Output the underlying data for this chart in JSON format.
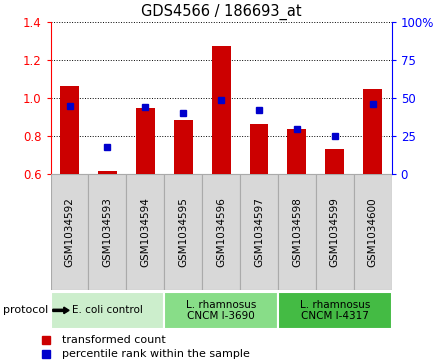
{
  "title": "GDS4566 / 186693_at",
  "samples": [
    "GSM1034592",
    "GSM1034593",
    "GSM1034594",
    "GSM1034595",
    "GSM1034596",
    "GSM1034597",
    "GSM1034598",
    "GSM1034599",
    "GSM1034600"
  ],
  "transformed_count": [
    1.065,
    0.615,
    0.945,
    0.885,
    1.275,
    0.865,
    0.835,
    0.73,
    1.045
  ],
  "percentile_rank": [
    45,
    18,
    44,
    40,
    49,
    42,
    30,
    25,
    46
  ],
  "ylim_left": [
    0.6,
    1.4
  ],
  "ylim_right": [
    0,
    100
  ],
  "yticks_left": [
    0.6,
    0.8,
    1.0,
    1.2,
    1.4
  ],
  "yticks_right": [
    0,
    25,
    50,
    75,
    100
  ],
  "bar_color": "#cc0000",
  "dot_color": "#0000cc",
  "bar_bottom": 0.6,
  "groups": [
    {
      "label": "E. coli control",
      "start": 0,
      "end": 3,
      "color": "#cceecc"
    },
    {
      "label": "L. rhamnosus\nCNCM I-3690",
      "start": 3,
      "end": 6,
      "color": "#88dd88"
    },
    {
      "label": "L. rhamnosus\nCNCM I-4317",
      "start": 6,
      "end": 9,
      "color": "#44bb44"
    }
  ],
  "legend_items": [
    {
      "label": "transformed count",
      "color": "#cc0000"
    },
    {
      "label": "percentile rank within the sample",
      "color": "#0000cc"
    }
  ],
  "protocol_label": "protocol",
  "background_color": "#ffffff",
  "xtick_box_color": "#d8d8d8",
  "xtick_box_edge": "#aaaaaa"
}
